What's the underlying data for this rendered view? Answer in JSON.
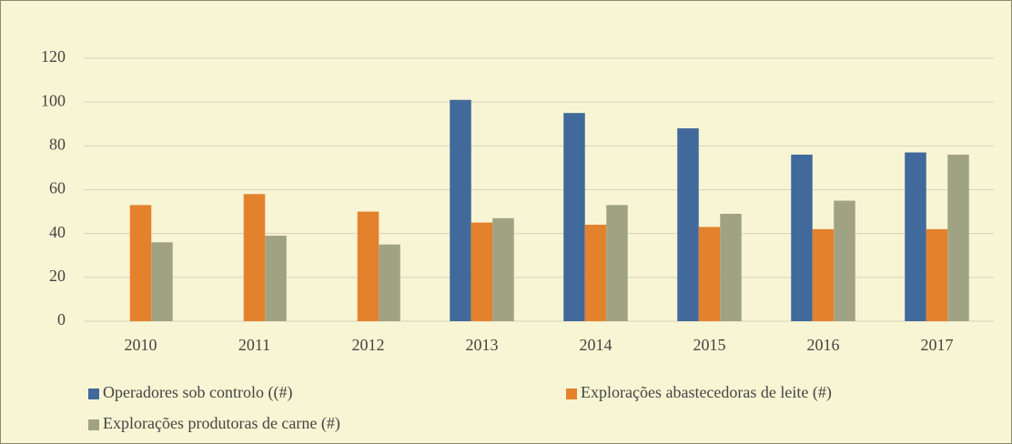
{
  "chart_data": {
    "type": "bar",
    "categories": [
      "2010",
      "2011",
      "2012",
      "2013",
      "2014",
      "2015",
      "2016",
      "2017"
    ],
    "series": [
      {
        "name": "Operadores sob controlo ((#)",
        "color": "#41699b",
        "values": [
          null,
          null,
          null,
          101,
          95,
          88,
          76,
          77
        ]
      },
      {
        "name": "Explorações abastecedoras de leite (#)",
        "color": "#e4812d",
        "values": [
          53,
          58,
          50,
          45,
          44,
          43,
          42,
          42
        ]
      },
      {
        "name": "Explorações produtoras de carne (#)",
        "color": "#a0a383",
        "values": [
          36,
          39,
          35,
          47,
          53,
          49,
          55,
          76
        ]
      }
    ],
    "ylim": [
      0,
      120
    ],
    "yticks": [
      0,
      20,
      40,
      60,
      80,
      100,
      120
    ],
    "grid": true,
    "legend": "bottom"
  }
}
